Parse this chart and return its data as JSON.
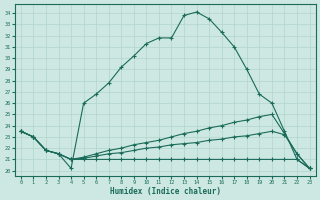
{
  "xlabel": "Humidex (Indice chaleur)",
  "xlim": [
    -0.5,
    23.5
  ],
  "ylim": [
    19.5,
    34.8
  ],
  "xticks": [
    0,
    1,
    2,
    3,
    4,
    5,
    6,
    7,
    8,
    9,
    10,
    11,
    12,
    13,
    14,
    15,
    16,
    17,
    18,
    19,
    20,
    21,
    22,
    23
  ],
  "yticks": [
    20,
    21,
    22,
    23,
    24,
    25,
    26,
    27,
    28,
    29,
    30,
    31,
    32,
    33,
    34
  ],
  "bg_color": "#cde8e2",
  "line_color": "#1a6b5a",
  "grid_color": "#b0d4cc",
  "lines": [
    {
      "x": [
        0,
        1,
        2,
        3,
        4,
        5,
        6,
        7,
        8,
        9,
        10,
        11,
        12,
        13,
        14,
        15,
        16,
        17,
        18,
        19,
        20,
        21,
        22,
        23
      ],
      "y": [
        23.5,
        23.0,
        21.8,
        21.5,
        20.2,
        26.0,
        26.8,
        27.8,
        29.2,
        30.2,
        31.3,
        31.8,
        31.8,
        33.8,
        34.1,
        33.5,
        32.3,
        31.0,
        29.0,
        26.8,
        26.0,
        23.5,
        21.0,
        20.2
      ]
    },
    {
      "x": [
        0,
        1,
        2,
        3,
        4,
        5,
        6,
        7,
        8,
        9,
        10,
        11,
        12,
        13,
        14,
        15,
        16,
        17,
        18,
        19,
        20,
        21,
        22,
        23
      ],
      "y": [
        23.5,
        23.0,
        21.8,
        21.5,
        21.0,
        21.2,
        21.5,
        21.8,
        22.0,
        22.3,
        22.5,
        22.7,
        23.0,
        23.3,
        23.5,
        23.8,
        24.0,
        24.3,
        24.5,
        24.8,
        25.0,
        23.3,
        21.5,
        20.2
      ]
    },
    {
      "x": [
        0,
        1,
        2,
        3,
        4,
        5,
        6,
        7,
        8,
        9,
        10,
        11,
        12,
        13,
        14,
        15,
        16,
        17,
        18,
        19,
        20,
        21,
        22,
        23
      ],
      "y": [
        23.5,
        23.0,
        21.8,
        21.5,
        21.0,
        21.1,
        21.3,
        21.5,
        21.6,
        21.8,
        22.0,
        22.1,
        22.3,
        22.4,
        22.5,
        22.7,
        22.8,
        23.0,
        23.1,
        23.3,
        23.5,
        23.2,
        21.5,
        20.2
      ]
    },
    {
      "x": [
        0,
        1,
        2,
        3,
        4,
        5,
        6,
        7,
        8,
        9,
        10,
        11,
        12,
        13,
        14,
        15,
        16,
        17,
        18,
        19,
        20,
        21,
        22,
        23
      ],
      "y": [
        23.5,
        23.0,
        21.8,
        21.5,
        21.0,
        21.0,
        21.0,
        21.0,
        21.0,
        21.0,
        21.0,
        21.0,
        21.0,
        21.0,
        21.0,
        21.0,
        21.0,
        21.0,
        21.0,
        21.0,
        21.0,
        21.0,
        21.0,
        20.2
      ]
    }
  ]
}
